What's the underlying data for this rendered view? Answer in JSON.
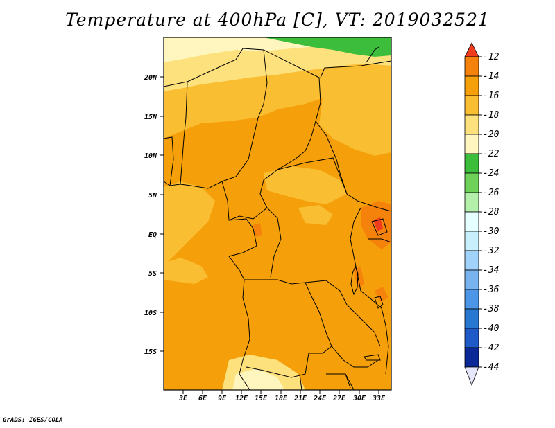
{
  "title": "Temperature at 400hPa [C], VT: 2019032521",
  "credit": "GrADS: IGES/COLA",
  "map": {
    "lat_labels": [
      "20N",
      "15N",
      "10N",
      "5N",
      "EQ",
      "5S",
      "10S",
      "15S"
    ],
    "lon_labels": [
      "3E",
      "6E",
      "9E",
      "12E",
      "15E",
      "18E",
      "21E",
      "24E",
      "27E",
      "30E",
      "33E"
    ],
    "fill_colors": {
      "lt_m12": "#f03c1e",
      "m14_m12": "#f5820a",
      "m16_m14": "#f5a00a",
      "m18_m16": "#fabe32",
      "m20_m18": "#fde17d",
      "m22_m20": "#fff5be",
      "m24_m22": "#3cbe3c"
    }
  },
  "colorbar": {
    "levels": [
      "-12",
      "-14",
      "-16",
      "-18",
      "-20",
      "-22",
      "-24",
      "-26",
      "-28",
      "-30",
      "-32",
      "-34",
      "-36",
      "-38",
      "-40",
      "-42",
      "-44"
    ],
    "colors": [
      "#f03c1e",
      "#f5820a",
      "#f5a00a",
      "#fabe32",
      "#fde17d",
      "#fff5be",
      "#3cbe3c",
      "#6ed25a",
      "#b4f0aa",
      "#e6ffff",
      "#c8f0fa",
      "#a0d2fa",
      "#78b4f0",
      "#4b96e6",
      "#2878d2",
      "#1e5ac8",
      "#0a2896",
      "#e6e6fa"
    ],
    "top_arrow_color": "#f03c1e",
    "bottom_arrow_color": "#e6e6fa"
  }
}
